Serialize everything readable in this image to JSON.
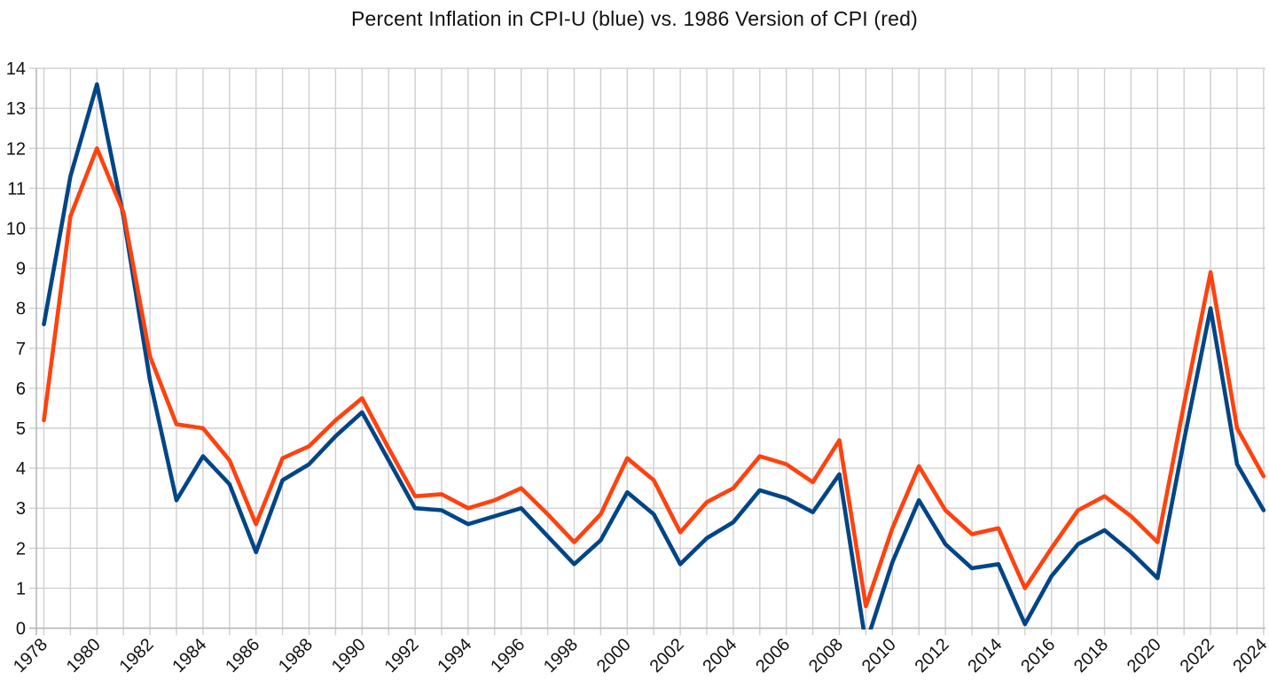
{
  "title": "Percent Inflation in CPI-U (blue) vs. 1986 Version of CPI (red)",
  "colors": {
    "cpi_u_blue": "#004586",
    "cpi_1986_red": "#ff420e",
    "gridline": "#cfcfcf",
    "axis_line": "#b8b8b8",
    "label_text": "#111111",
    "background": "#ffffff"
  },
  "chart_data": {
    "type": "line",
    "title": "Percent Inflation in CPI-U (blue) vs. 1986 Version of CPI (red)",
    "xlabel": "",
    "ylabel": "",
    "x": [
      1978,
      1979,
      1980,
      1981,
      1982,
      1983,
      1984,
      1985,
      1986,
      1987,
      1988,
      1989,
      1990,
      1991,
      1992,
      1993,
      1994,
      1995,
      1996,
      1997,
      1998,
      1999,
      2000,
      2001,
      2002,
      2003,
      2004,
      2005,
      2006,
      2007,
      2008,
      2009,
      2010,
      2011,
      2012,
      2013,
      2014,
      2015,
      2016,
      2017,
      2018,
      2019,
      2020,
      2021,
      2022,
      2023,
      2024
    ],
    "series": [
      {
        "name": "CPI-U",
        "color": "#004586",
        "values": [
          7.6,
          11.3,
          13.6,
          10.3,
          6.2,
          3.2,
          4.3,
          3.6,
          1.9,
          3.7,
          4.1,
          4.8,
          5.4,
          4.2,
          3.0,
          2.95,
          2.6,
          2.8,
          3.0,
          2.3,
          1.6,
          2.2,
          3.4,
          2.85,
          1.6,
          2.25,
          2.65,
          3.45,
          3.25,
          2.9,
          3.85,
          -0.4,
          1.65,
          3.2,
          2.1,
          1.5,
          1.6,
          0.1,
          1.3,
          2.1,
          2.45,
          1.9,
          1.25,
          4.7,
          8.0,
          4.1,
          2.95
        ]
      },
      {
        "name": "1986 Version of CPI",
        "color": "#ff420e",
        "values": [
          5.2,
          10.3,
          12.0,
          10.4,
          6.8,
          5.1,
          5.0,
          4.2,
          2.6,
          4.25,
          4.55,
          5.2,
          5.75,
          4.5,
          3.3,
          3.35,
          3.0,
          3.2,
          3.5,
          2.85,
          2.15,
          2.85,
          4.25,
          3.7,
          2.4,
          3.15,
          3.5,
          4.3,
          4.1,
          3.65,
          4.7,
          0.55,
          2.5,
          4.05,
          2.95,
          2.35,
          2.5,
          1.0,
          2.0,
          2.95,
          3.3,
          2.8,
          2.15,
          5.6,
          8.9,
          5.0,
          3.8
        ]
      }
    ],
    "ylim": [
      0,
      14
    ],
    "y_tick_step": 1,
    "y_tick_labels": [
      "0",
      "1",
      "2",
      "3",
      "4",
      "5",
      "6",
      "7",
      "8",
      "9",
      "10",
      "11",
      "12",
      "13",
      "14"
    ],
    "x_label_step": 2,
    "x_tick_labels": [
      "1978",
      "1980",
      "1982",
      "1984",
      "1986",
      "1988",
      "1990",
      "1992",
      "1994",
      "1996",
      "1998",
      "2000",
      "2002",
      "2004",
      "2006",
      "2008",
      "2010",
      "2012",
      "2014",
      "2016",
      "2018",
      "2020",
      "2022",
      "2024"
    ],
    "grid": true,
    "legend_position": "none",
    "x_labels_rotation_deg": -45,
    "values_below_ylim_clipped_at_zero": true
  }
}
